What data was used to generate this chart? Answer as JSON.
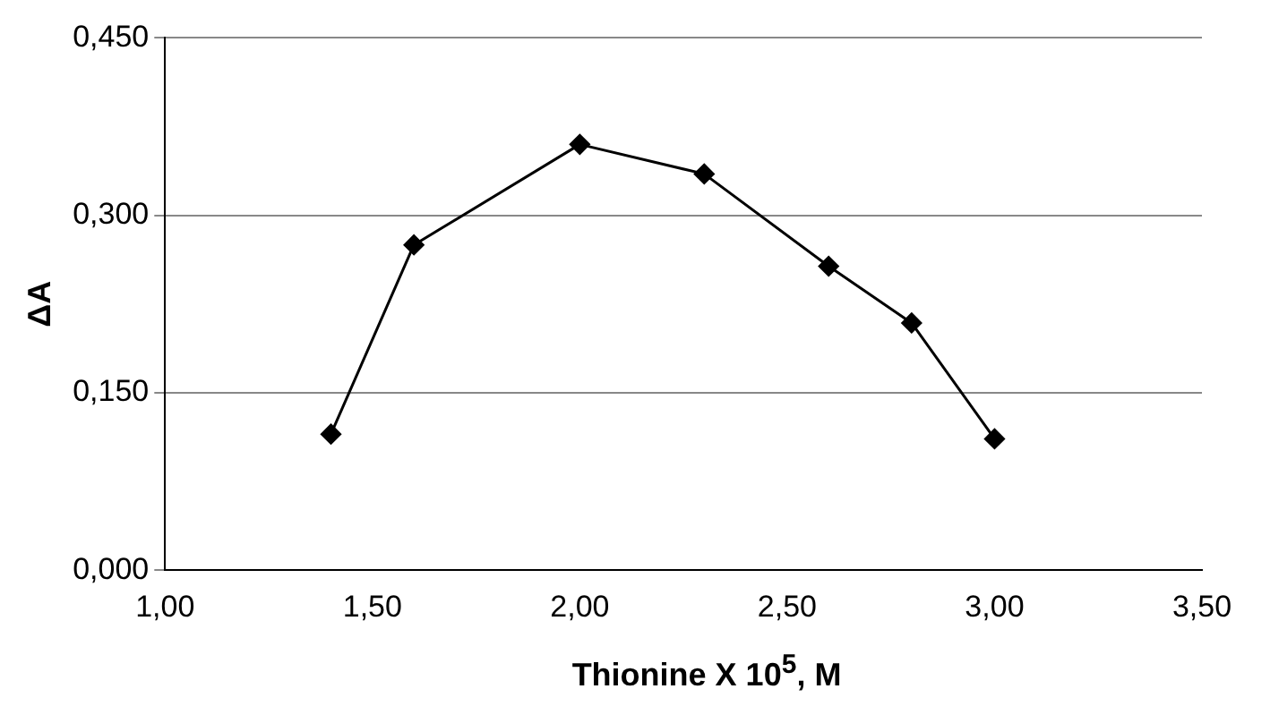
{
  "chart_data": {
    "type": "line",
    "xlabel": "Thionine X 10$^{5}$, M",
    "ylabel": "ΔA",
    "x": [
      1.4,
      1.6,
      2.0,
      2.3,
      2.6,
      2.8,
      3.0
    ],
    "series": [
      {
        "color": "#000000",
        "values": [
          0.115,
          0.275,
          0.36,
          0.335,
          0.257,
          0.209,
          0.111
        ]
      }
    ],
    "xlim": [
      1.0,
      3.5
    ],
    "ylim": [
      0,
      0.45
    ],
    "xticks": [
      {
        "value": 1.0,
        "label": "1,00"
      },
      {
        "value": 1.5,
        "label": "1,50"
      },
      {
        "value": 2.0,
        "label": "2,00"
      },
      {
        "value": 2.5,
        "label": "2,50"
      },
      {
        "value": 3.0,
        "label": "3,00"
      },
      {
        "value": 3.5,
        "label": "3,50"
      }
    ],
    "yticks": [
      {
        "value": 0,
        "label": "0,000"
      },
      {
        "value": 0.15,
        "label": "0,150"
      },
      {
        "value": 0.3,
        "label": "0,300"
      },
      {
        "value": 0.45,
        "label": "0,450"
      }
    ],
    "grid": "y",
    "marker": "diamond",
    "line_style": "solid",
    "legend": false
  }
}
